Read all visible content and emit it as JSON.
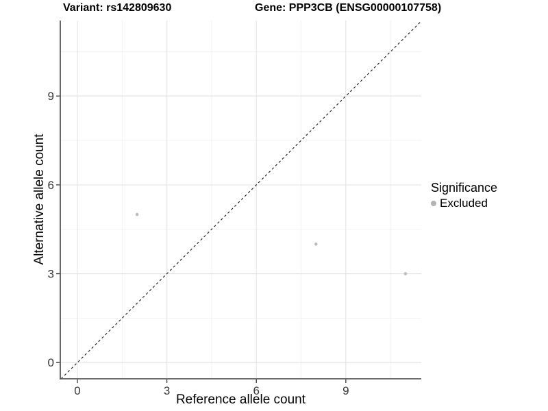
{
  "titles": {
    "variant": "Variant: rs142809630",
    "gene": "Gene: PPP3CB (ENSG00000107758)"
  },
  "legend": {
    "title": "Significance",
    "items": [
      {
        "label": "Excluded",
        "color": "#b3b3b3"
      }
    ]
  },
  "chart_data": {
    "type": "scatter",
    "title": "Variant: rs142809630 / Gene: PPP3CB (ENSG00000107758)",
    "xlabel": "Reference allele count",
    "ylabel": "Alternative allele count",
    "points": [
      {
        "x": 2,
        "y": 5,
        "series": "Excluded"
      },
      {
        "x": 8,
        "y": 4,
        "series": "Excluded"
      },
      {
        "x": 11,
        "y": 3,
        "series": "Excluded"
      }
    ],
    "point_color": "#bdbdbd",
    "point_radius": 2.3,
    "x_ticks": [
      0,
      3,
      6,
      9
    ],
    "y_ticks": [
      0,
      3,
      6,
      9
    ],
    "x_minor": [
      1.5,
      4.5,
      7.5,
      10.5
    ],
    "y_minor": [
      1.5,
      4.5,
      7.5,
      10.5
    ],
    "xlim": [
      -0.575,
      11.53
    ],
    "ylim": [
      -0.55,
      11.55
    ],
    "grid": true,
    "legend_position": "right",
    "identity_line": {
      "slope": 1,
      "intercept": 0,
      "style": "dashed"
    }
  }
}
